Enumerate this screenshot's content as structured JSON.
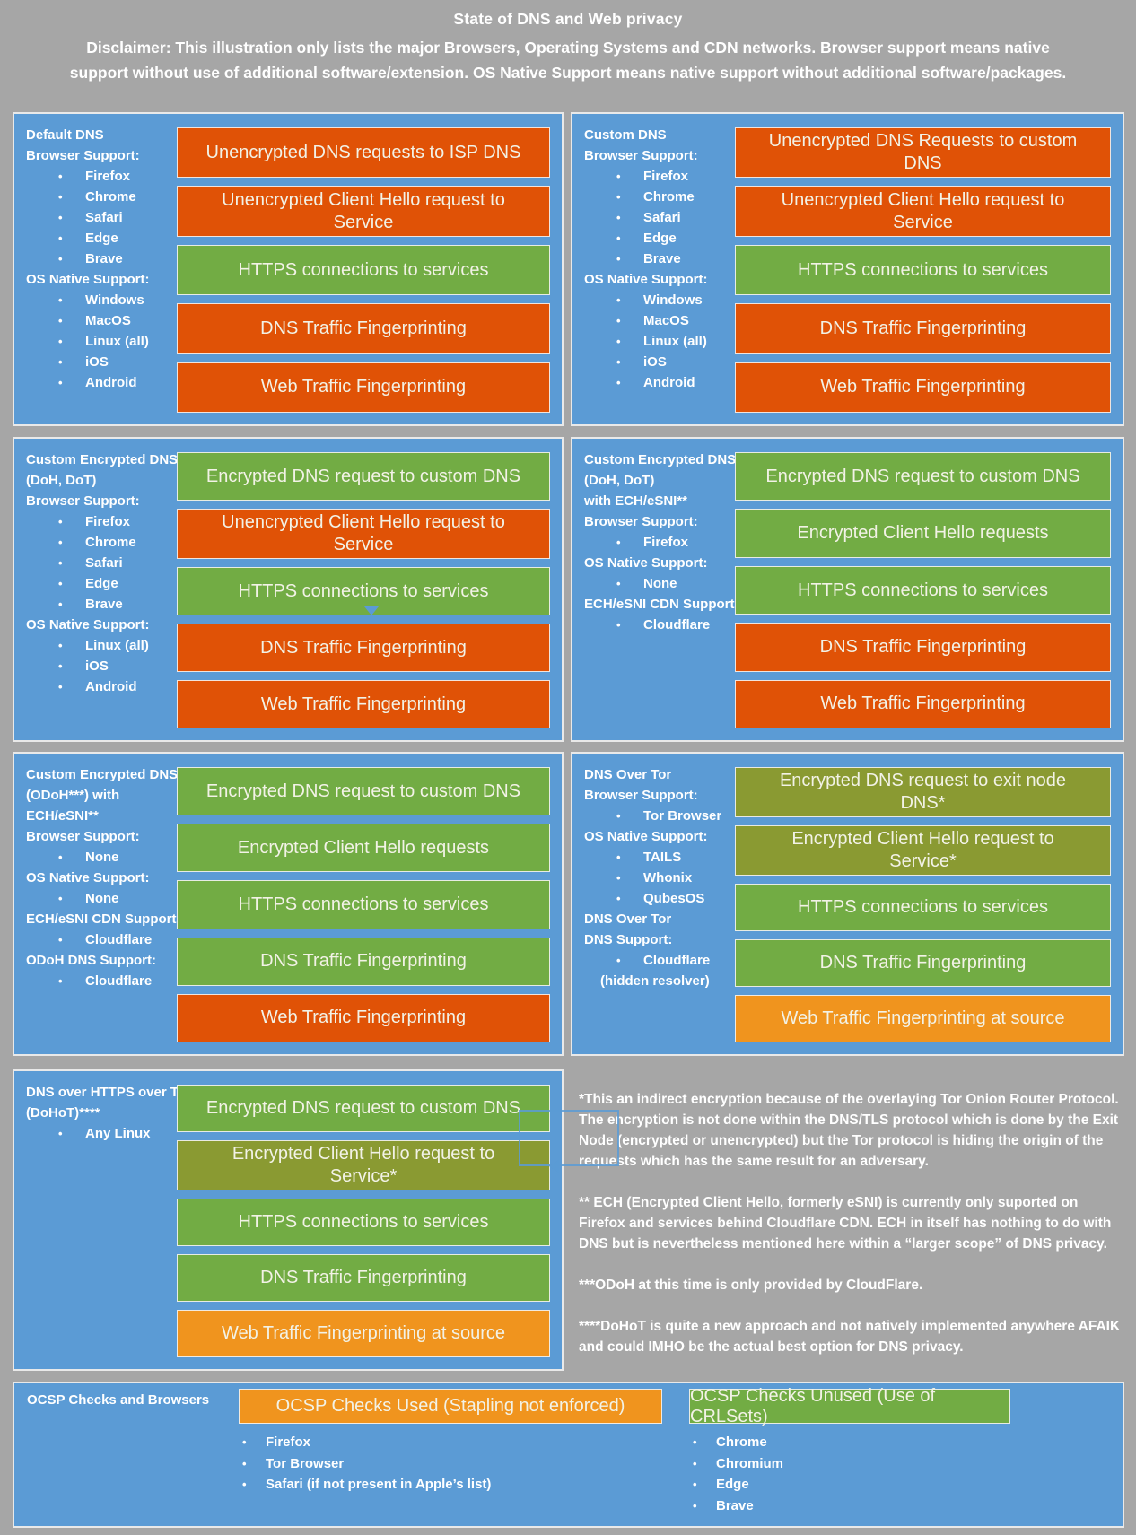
{
  "colors": {
    "background": "#A6A6A6",
    "panel_blue": "#5B9BD5",
    "red": "#E05206",
    "green": "#72AC44",
    "olive": "#8A9A32",
    "amber": "#F0941E",
    "box_text": "#F2F2E6"
  },
  "header": {
    "title": "State of DNS and Web privacy",
    "disclaimer": "Disclaimer: This illustration only lists the major Browsers, Operating Systems and CDN networks. Browser support means native support without use of additional software/extension. OS Native Support means native support without additional software/packages."
  },
  "panels": [
    {
      "name": "default-dns",
      "info": [
        {
          "t": "label",
          "text": "Default DNS"
        },
        {
          "t": "label",
          "text": "Browser Support:"
        },
        {
          "t": "bullet",
          "text": "Firefox"
        },
        {
          "t": "bullet",
          "text": "Chrome"
        },
        {
          "t": "bullet",
          "text": "Safari"
        },
        {
          "t": "bullet",
          "text": "Edge"
        },
        {
          "t": "bullet",
          "text": "Brave"
        },
        {
          "t": "label",
          "text": "OS Native Support:"
        },
        {
          "t": "bullet",
          "text": "Windows"
        },
        {
          "t": "bullet",
          "text": "MacOS"
        },
        {
          "t": "bullet",
          "text": "Linux (all)"
        },
        {
          "t": "bullet",
          "text": "iOS"
        },
        {
          "t": "bullet",
          "text": "Android"
        }
      ],
      "boxes": [
        {
          "text": "Unencrypted DNS requests to ISP DNS",
          "color": "red"
        },
        {
          "text": "Unencrypted Client Hello request to Service",
          "color": "red"
        },
        {
          "text": "HTTPS connections to services",
          "color": "green"
        },
        {
          "text": "DNS Traffic Fingerprinting",
          "color": "red"
        },
        {
          "text": "Web Traffic Fingerprinting",
          "color": "red"
        }
      ]
    },
    {
      "name": "custom-dns",
      "info": [
        {
          "t": "label",
          "text": "Custom DNS"
        },
        {
          "t": "label",
          "text": "Browser Support:"
        },
        {
          "t": "bullet",
          "text": "Firefox"
        },
        {
          "t": "bullet",
          "text": "Chrome"
        },
        {
          "t": "bullet",
          "text": "Safari"
        },
        {
          "t": "bullet",
          "text": "Edge"
        },
        {
          "t": "bullet",
          "text": "Brave"
        },
        {
          "t": "label",
          "text": "OS Native Support:"
        },
        {
          "t": "bullet",
          "text": "Windows"
        },
        {
          "t": "bullet",
          "text": "MacOS"
        },
        {
          "t": "bullet",
          "text": "Linux (all)"
        },
        {
          "t": "bullet",
          "text": "iOS"
        },
        {
          "t": "bullet",
          "text": "Android"
        }
      ],
      "boxes": [
        {
          "text": "Unencrypted DNS Requests to custom DNS",
          "color": "red"
        },
        {
          "text": "Unencrypted Client Hello request to Service",
          "color": "red"
        },
        {
          "text": "HTTPS connections to services",
          "color": "green"
        },
        {
          "text": "DNS Traffic Fingerprinting",
          "color": "red"
        },
        {
          "text": "Web Traffic Fingerprinting",
          "color": "red"
        }
      ]
    },
    {
      "name": "custom-encrypted-dns",
      "info": [
        {
          "t": "label",
          "text": "Custom Encrypted DNS"
        },
        {
          "t": "label",
          "text": "(DoH, DoT)"
        },
        {
          "t": "label",
          "text": "Browser Support:"
        },
        {
          "t": "bullet",
          "text": "Firefox"
        },
        {
          "t": "bullet",
          "text": "Chrome"
        },
        {
          "t": "bullet",
          "text": "Safari"
        },
        {
          "t": "bullet",
          "text": "Edge"
        },
        {
          "t": "bullet",
          "text": "Brave"
        },
        {
          "t": "label",
          "text": "OS Native Support:"
        },
        {
          "t": "bullet",
          "text": "Linux (all)"
        },
        {
          "t": "bullet",
          "text": "iOS"
        },
        {
          "t": "bullet",
          "text": "Android"
        }
      ],
      "boxes": [
        {
          "text": "Encrypted DNS request to custom DNS",
          "color": "green"
        },
        {
          "text": "Unencrypted Client Hello request to Service",
          "color": "red"
        },
        {
          "text": "HTTPS connections to services",
          "color": "green"
        },
        {
          "text": "DNS Traffic Fingerprinting",
          "color": "red"
        },
        {
          "text": "Web Traffic Fingerprinting",
          "color": "red"
        }
      ]
    },
    {
      "name": "custom-encrypted-dns-ech",
      "info": [
        {
          "t": "label",
          "text": "Custom Encrypted DNS"
        },
        {
          "t": "label",
          "text": "(DoH, DoT)"
        },
        {
          "t": "label",
          "text": "with ECH/eSNI**"
        },
        {
          "t": "label",
          "text": "Browser Support:"
        },
        {
          "t": "bullet",
          "text": "Firefox"
        },
        {
          "t": "label",
          "text": "OS Native Support:"
        },
        {
          "t": "bullet",
          "text": "None"
        },
        {
          "t": "label",
          "text": "ECH/eSNI CDN Support:"
        },
        {
          "t": "bullet",
          "text": "Cloudflare"
        }
      ],
      "boxes": [
        {
          "text": "Encrypted DNS request to custom DNS",
          "color": "green"
        },
        {
          "text": "Encrypted Client Hello requests",
          "color": "green"
        },
        {
          "text": "HTTPS connections to services",
          "color": "green"
        },
        {
          "text": "DNS Traffic Fingerprinting",
          "color": "red"
        },
        {
          "text": "Web Traffic Fingerprinting",
          "color": "red"
        }
      ]
    },
    {
      "name": "custom-encrypted-dns-odoh",
      "info": [
        {
          "t": "label",
          "text": "Custom Encrypted DNS"
        },
        {
          "t": "label",
          "text": "(ODoH***) with"
        },
        {
          "t": "label",
          "text": "ECH/eSNI**"
        },
        {
          "t": "label",
          "text": "Browser Support:"
        },
        {
          "t": "bullet",
          "text": "None"
        },
        {
          "t": "label",
          "text": "OS Native Support:"
        },
        {
          "t": "bullet",
          "text": "None"
        },
        {
          "t": "label",
          "text": "ECH/eSNI CDN Support:"
        },
        {
          "t": "bullet",
          "text": "Cloudflare"
        },
        {
          "t": "label",
          "text": "ODoH DNS Support:"
        },
        {
          "t": "bullet",
          "text": "Cloudflare"
        }
      ],
      "boxes": [
        {
          "text": "Encrypted DNS request to custom DNS",
          "color": "green"
        },
        {
          "text": "Encrypted Client Hello requests",
          "color": "green"
        },
        {
          "text": "HTTPS connections to services",
          "color": "green"
        },
        {
          "text": "DNS Traffic Fingerprinting",
          "color": "green"
        },
        {
          "text": "Web Traffic Fingerprinting",
          "color": "red"
        }
      ]
    },
    {
      "name": "dns-over-tor",
      "info": [
        {
          "t": "label",
          "text": "DNS Over Tor"
        },
        {
          "t": "label",
          "text": "Browser Support:"
        },
        {
          "t": "bullet",
          "text": "Tor Browser"
        },
        {
          "t": "label",
          "text": "OS Native Support:"
        },
        {
          "t": "bullet",
          "text": "TAILS"
        },
        {
          "t": "bullet",
          "text": "Whonix"
        },
        {
          "t": "bullet",
          "text": "QubesOS"
        },
        {
          "t": "label",
          "text": "DNS Over Tor"
        },
        {
          "t": "label",
          "text": "DNS Support:"
        },
        {
          "t": "bullet",
          "text": "Cloudflare"
        },
        {
          "t": "sub",
          "text": "(hidden resolver)"
        }
      ],
      "boxes": [
        {
          "text": "Encrypted DNS request to exit node DNS*",
          "color": "olive"
        },
        {
          "text": "Encrypted Client Hello request to Service*",
          "color": "olive"
        },
        {
          "text": "HTTPS connections to services",
          "color": "green"
        },
        {
          "text": "DNS Traffic Fingerprinting",
          "color": "green"
        },
        {
          "text": "Web Traffic Fingerprinting at source",
          "color": "amber"
        }
      ]
    },
    {
      "name": "dohot",
      "info": [
        {
          "t": "label",
          "text": "DNS over HTTPS over Tor"
        },
        {
          "t": "label",
          "text": "(DoHoT)****"
        },
        {
          "t": "bullet",
          "text": "Any Linux"
        }
      ],
      "boxes": [
        {
          "text": "Encrypted DNS request to custom DNS",
          "color": "green"
        },
        {
          "text": "Encrypted Client Hello request to Service*",
          "color": "olive"
        },
        {
          "text": "HTTPS connections to services",
          "color": "green"
        },
        {
          "text": "DNS Traffic Fingerprinting",
          "color": "green"
        },
        {
          "text": "Web Traffic Fingerprinting at source",
          "color": "amber"
        }
      ]
    }
  ],
  "notes": [
    "*This an indirect encryption because of the overlaying Tor Onion Router Protocol. The encryption is not done within the DNS/TLS protocol which is done by the Exit Node (encrypted or unencrypted) but the Tor protocol is hiding the origin of the requests which has the same result for an adversary.",
    "** ECH (Encrypted Client Hello, formerly eSNI) is currently only suported on Firefox and services behind Cloudflare CDN. ECH in itself has nothing to do with DNS but is nevertheless mentioned here within a “larger scope” of DNS privacy.",
    "***ODoH at this time is only provided by CloudFlare.",
    "****DoHoT is quite a new approach and not natively implemented anywhere AFAIK and could IMHO be the actual best option for DNS privacy."
  ],
  "ocsp": {
    "title": "OCSP Checks and Browsers",
    "columns": [
      {
        "box": "OCSP Checks Used (Stapling not enforced)",
        "color": "amber",
        "items": [
          "Firefox",
          "Tor Browser",
          "Safari (if not present in Apple’s list)"
        ]
      },
      {
        "box": "OCSP Checks Unused (Use of CRLSets)",
        "color": "green",
        "items": [
          "Chrome",
          "Chromium",
          "Edge",
          "Brave"
        ]
      }
    ]
  }
}
